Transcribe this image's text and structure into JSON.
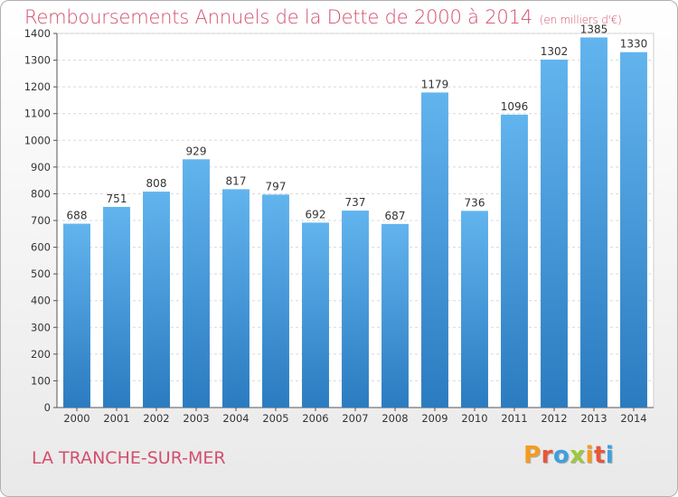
{
  "header": {
    "title": "Remboursements Annuels de la Dette de 2000 à 2014",
    "subtitle": "(en milliers d'€)"
  },
  "footer": {
    "commune": "LA TRANCHE-SUR-MER",
    "logo": [
      "P",
      "r",
      "o",
      "x",
      "i",
      "t",
      "i"
    ]
  },
  "colors": {
    "bar_top": "#62b4ee",
    "bar_bottom": "#2a7bc0",
    "title": "#d34f6e",
    "logo": [
      "#f39c1f",
      "#e8563a",
      "#3da0dc",
      "#9cc93b",
      "#f39c1f",
      "#e8563a",
      "#3da0dc"
    ]
  },
  "chart_data": {
    "type": "bar",
    "title": "Remboursements Annuels de la Dette de 2000 à 2014",
    "subtitle": "(en milliers d'€)",
    "xlabel": "",
    "ylabel": "",
    "categories": [
      "2000",
      "2001",
      "2002",
      "2003",
      "2004",
      "2005",
      "2006",
      "2007",
      "2008",
      "2009",
      "2010",
      "2011",
      "2012",
      "2013",
      "2014"
    ],
    "values": [
      688,
      751,
      808,
      929,
      817,
      797,
      692,
      737,
      687,
      1179,
      736,
      1096,
      1302,
      1385,
      1330
    ],
    "ylim": [
      0,
      1400
    ],
    "yticks": [
      0,
      100,
      200,
      300,
      400,
      500,
      600,
      700,
      800,
      900,
      1000,
      1100,
      1200,
      1300,
      1400
    ],
    "grid": true,
    "legend": "none"
  }
}
